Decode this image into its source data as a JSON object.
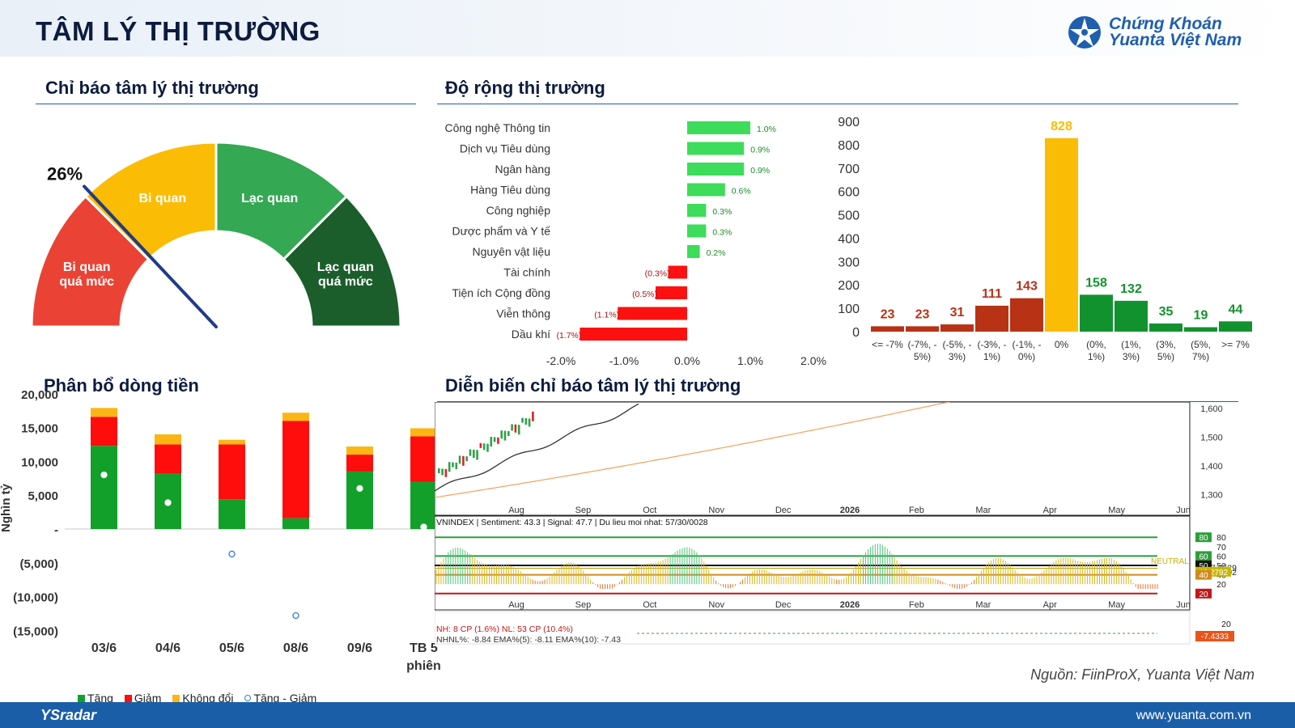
{
  "header": {
    "title": "TÂM LÝ THỊ TRƯỜNG",
    "logo_line1": "Chứng Khoán",
    "logo_line2": "Yuanta Việt Nam",
    "logo_icon": "yuanta-star-icon"
  },
  "sections": {
    "gauge_title": "Chỉ báo tâm lý thị trường",
    "breadth_title": "Độ rộng thị trường",
    "flow_title": "Phân bổ dòng tiền",
    "history_title": "Diễn biến chỉ báo tâm lý thị trường"
  },
  "gauge": {
    "value_label": "26%",
    "value": 26,
    "segments": [
      {
        "label": "Bi quan\nquá mức",
        "color": "#ea4335"
      },
      {
        "label": "Bi quan",
        "color": "#fbbc05"
      },
      {
        "label": "Lạc quan",
        "color": "#34a853"
      },
      {
        "label": "Lạc quan\nquá mức",
        "color": "#1b5e2b"
      }
    ],
    "needle_color": "#1f3c88"
  },
  "chart_data": [
    {
      "type": "bar",
      "orientation": "horizontal",
      "categories": [
        "Công nghệ Thông tin",
        "Dịch vụ Tiêu dùng",
        "Ngân hàng",
        "Hàng Tiêu dùng",
        "Công nghiệp",
        "Dược phẩm và Y tế",
        "Nguyên vật liệu",
        "Tài chính",
        "Tiện ích Cộng đồng",
        "Viễn thông",
        "Dầu khí"
      ],
      "values": [
        1.0,
        0.9,
        0.9,
        0.6,
        0.3,
        0.3,
        0.2,
        -0.3,
        -0.5,
        -1.1,
        -1.7
      ],
      "value_labels": [
        "1.0%",
        "0.9%",
        "0.9%",
        "0.6%",
        "0.3%",
        "0.3%",
        "0.2%",
        "(0.3%)",
        "(0.5%)",
        "(1.1%)",
        "(1.7%)"
      ],
      "xlim": [
        -2.0,
        2.0
      ],
      "xticks": [
        "-2.0%",
        "-1.0%",
        "0.0%",
        "1.0%",
        "2.0%"
      ],
      "colors": {
        "positive": "#3ddc5a",
        "negative": "#ff1010",
        "pos_label": "#1e8a2a",
        "neg_label": "#b01010"
      }
    },
    {
      "type": "bar",
      "categories": [
        "<= -7%",
        "(-7%, -5%)",
        "(-5%, -3%)",
        "(-3%, -1%)",
        "(-1%, 0%)",
        "0%",
        "(0%, 1%)",
        "(1%, 3%)",
        "(3%, 5%)",
        "(5%, 7%)",
        ">= 7%"
      ],
      "category_lines": [
        [
          "<= -7%"
        ],
        [
          "(-7%, -",
          "5%)"
        ],
        [
          "(-5%, -",
          "3%)"
        ],
        [
          "(-3%, -",
          "1%)"
        ],
        [
          "(-1%, -",
          "0%)"
        ],
        [
          "0%"
        ],
        [
          "(0%,",
          "1%)"
        ],
        [
          "(1%,",
          "3%)"
        ],
        [
          "(3%,",
          "5%)"
        ],
        [
          "(5%,",
          "7%)"
        ],
        [
          ">= 7%"
        ]
      ],
      "values": [
        23,
        23,
        31,
        111,
        143,
        828,
        158,
        132,
        35,
        19,
        44
      ],
      "ylim": [
        0,
        900
      ],
      "yticks": [
        0,
        100,
        200,
        300,
        400,
        500,
        600,
        700,
        800,
        900
      ],
      "colors": {
        "down": "#b83216",
        "flat": "#fbbc05",
        "up": "#12922e"
      }
    },
    {
      "type": "bar",
      "stacked": true,
      "categories": [
        "03/6",
        "04/6",
        "05/6",
        "08/6",
        "09/6",
        "TB 5\nphiên"
      ],
      "series": [
        {
          "name": "Tăng",
          "values": [
            12300,
            8200,
            4400,
            1600,
            8500,
            7000
          ],
          "color": "#12a02a"
        },
        {
          "name": "Giảm",
          "values": [
            4300,
            4300,
            8100,
            14400,
            2500,
            6700
          ],
          "color": "#ff0d0d"
        },
        {
          "name": "Không đổi",
          "values": [
            1300,
            1500,
            700,
            1200,
            1200,
            1200
          ],
          "color": "#fbb614"
        },
        {
          "name": "Tăng - Giảm",
          "values": [
            8000,
            3900,
            -3700,
            -12800,
            6000,
            300
          ],
          "type": "scatter",
          "color": "#3a7bd5"
        }
      ],
      "ylim": [
        -15000,
        20000
      ],
      "yticks": [
        "(15,000)",
        "(10,000)",
        "(5,000)",
        "-",
        "5,000",
        "10,000",
        "15,000",
        "20,000"
      ],
      "ylabel": "Nghìn tỷ"
    },
    {
      "type": "line",
      "panel": "price",
      "x_months": [
        "Aug",
        "Sep",
        "Oct",
        "Nov",
        "Dec",
        "2026",
        "Feb",
        "Mar",
        "Apr",
        "May",
        "Jun"
      ],
      "yticks": [
        "1,600",
        "1,500",
        "1,400",
        "1,300"
      ]
    },
    {
      "type": "bar",
      "panel": "sentiment",
      "header_text": "VNINDEX  |  Sentiment: 43.3  |  Signal: 47.7  |  Du lieu moi nhat: 57/30/0028",
      "x_months": [
        "Aug",
        "Sep",
        "Oct",
        "Nov",
        "Dec",
        "2026",
        "Feb",
        "Mar",
        "Apr",
        "May",
        "Jun"
      ],
      "levels": {
        "80": "80",
        "60": "60",
        "50": "50",
        "40": "40",
        "20": "20"
      },
      "right_labels": [
        "80",
        "70",
        "60",
        "50",
        "47.6529",
        "43.2792",
        "40",
        "20",
        "20"
      ],
      "neutral_label": "NEUTRAL",
      "markers": [
        {
          "text": "80",
          "color": "#2e9e3a"
        },
        {
          "text": "60",
          "color": "#2e9e3a"
        },
        {
          "text": "50",
          "color": "#111111"
        },
        {
          "text": "43.2792",
          "color": "#c8b800"
        },
        {
          "text": "40",
          "color": "#d08a1a"
        },
        {
          "text": "20",
          "color": "#c01818"
        }
      ]
    },
    {
      "type": "line",
      "panel": "breadth",
      "line1": "NH: 8 CP (1.6%)  NL: 53 CP (10.4%)",
      "line2": "NHNL%: -8.84   EMA%(5): -8.11   EMA%(10): -7.43",
      "right_labels": [
        "20",
        "-7.4333"
      ]
    }
  ],
  "source_note": "Nguồn: FiinProX, Yuanta Việt Nam",
  "footer": {
    "brand": "YSradar",
    "url": "www.yuanta.com.vn"
  }
}
